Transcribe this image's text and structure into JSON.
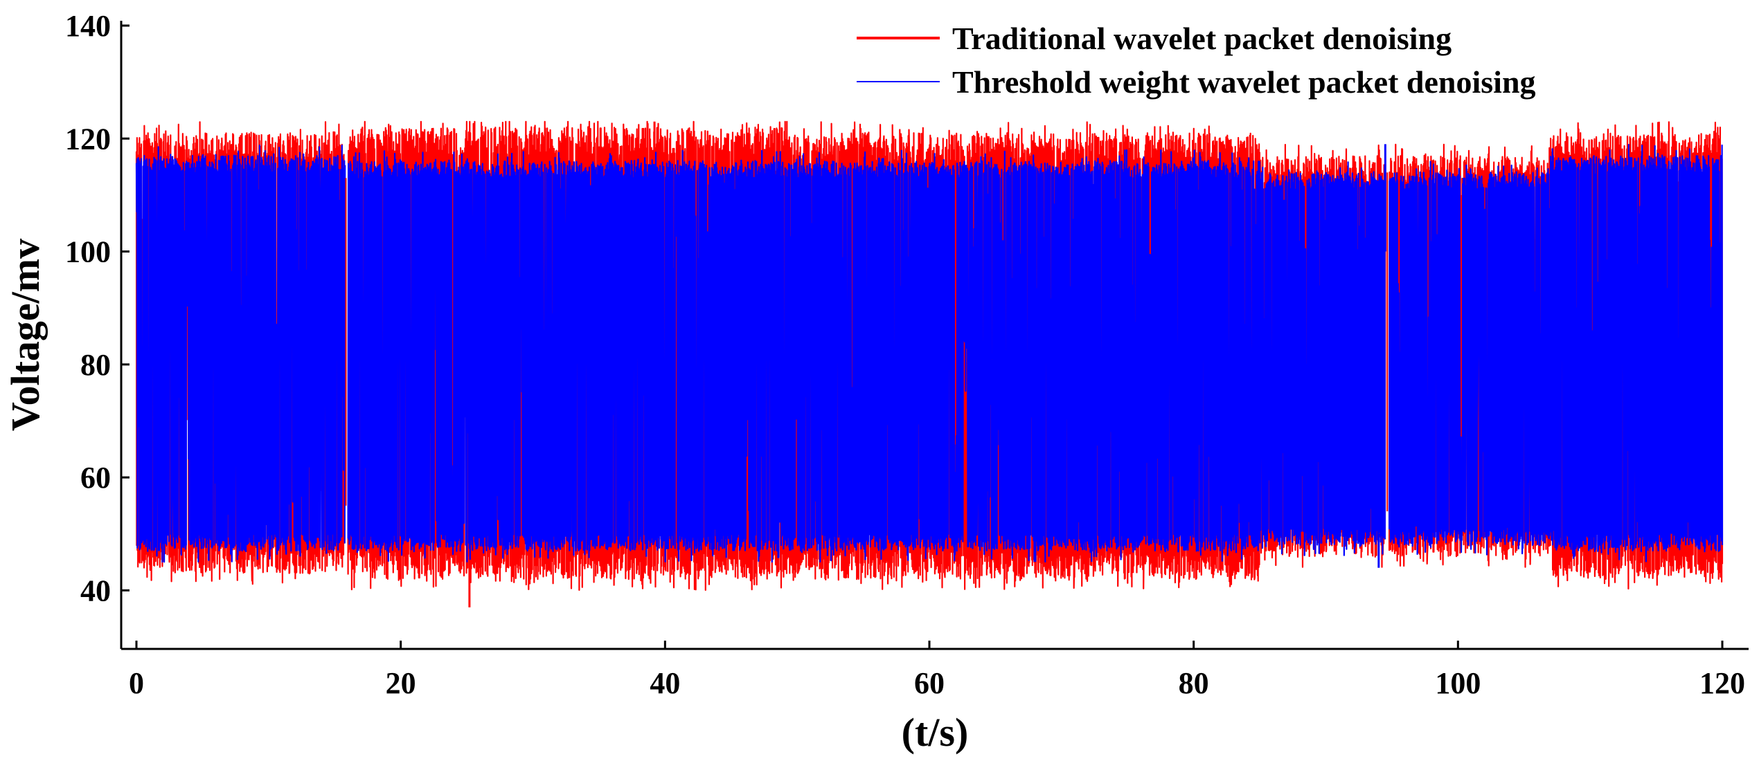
{
  "chart_data": {
    "type": "line",
    "title": "",
    "xlabel": "(t/s)",
    "ylabel": "Voltage/mv",
    "xlim": [
      0,
      120
    ],
    "ylim": [
      30,
      140
    ],
    "xticks": [
      0,
      20,
      40,
      60,
      80,
      100,
      120
    ],
    "yticks": [
      40,
      60,
      80,
      100,
      120,
      140
    ],
    "grid": false,
    "legend_position": "top-right",
    "series": [
      {
        "name": "Traditional wavelet packet denoising",
        "color": "#ff0000",
        "segments": [
          {
            "t_start": 0,
            "t_end": 15.8,
            "high": 121,
            "low": 43
          },
          {
            "t_start": 16,
            "t_end": 50,
            "high": 122,
            "low": 42
          },
          {
            "t_start": 50,
            "t_end": 85,
            "high": 121,
            "low": 42
          },
          {
            "t_start": 85,
            "t_end": 94.5,
            "high": 117,
            "low": 46
          },
          {
            "t_start": 94.8,
            "t_end": 107,
            "high": 117,
            "low": 46
          },
          {
            "t_start": 107,
            "t_end": 120,
            "high": 121,
            "low": 42
          }
        ],
        "min_value": 37,
        "max_value": 123
      },
      {
        "name": "Threshold weight wavelet packet denoising",
        "color": "#0000ff",
        "segments": [
          {
            "t_start": 0,
            "t_end": 15.8,
            "high": 117,
            "low": 47
          },
          {
            "t_start": 16,
            "t_end": 50,
            "high": 116,
            "low": 47
          },
          {
            "t_start": 50,
            "t_end": 85,
            "high": 116,
            "low": 47
          },
          {
            "t_start": 85,
            "t_end": 94.5,
            "high": 114,
            "low": 48
          },
          {
            "t_start": 94.8,
            "t_end": 107,
            "high": 114,
            "low": 48
          },
          {
            "t_start": 107,
            "t_end": 120,
            "high": 117,
            "low": 47
          }
        ],
        "min_value": 44,
        "max_value": 119
      }
    ]
  }
}
